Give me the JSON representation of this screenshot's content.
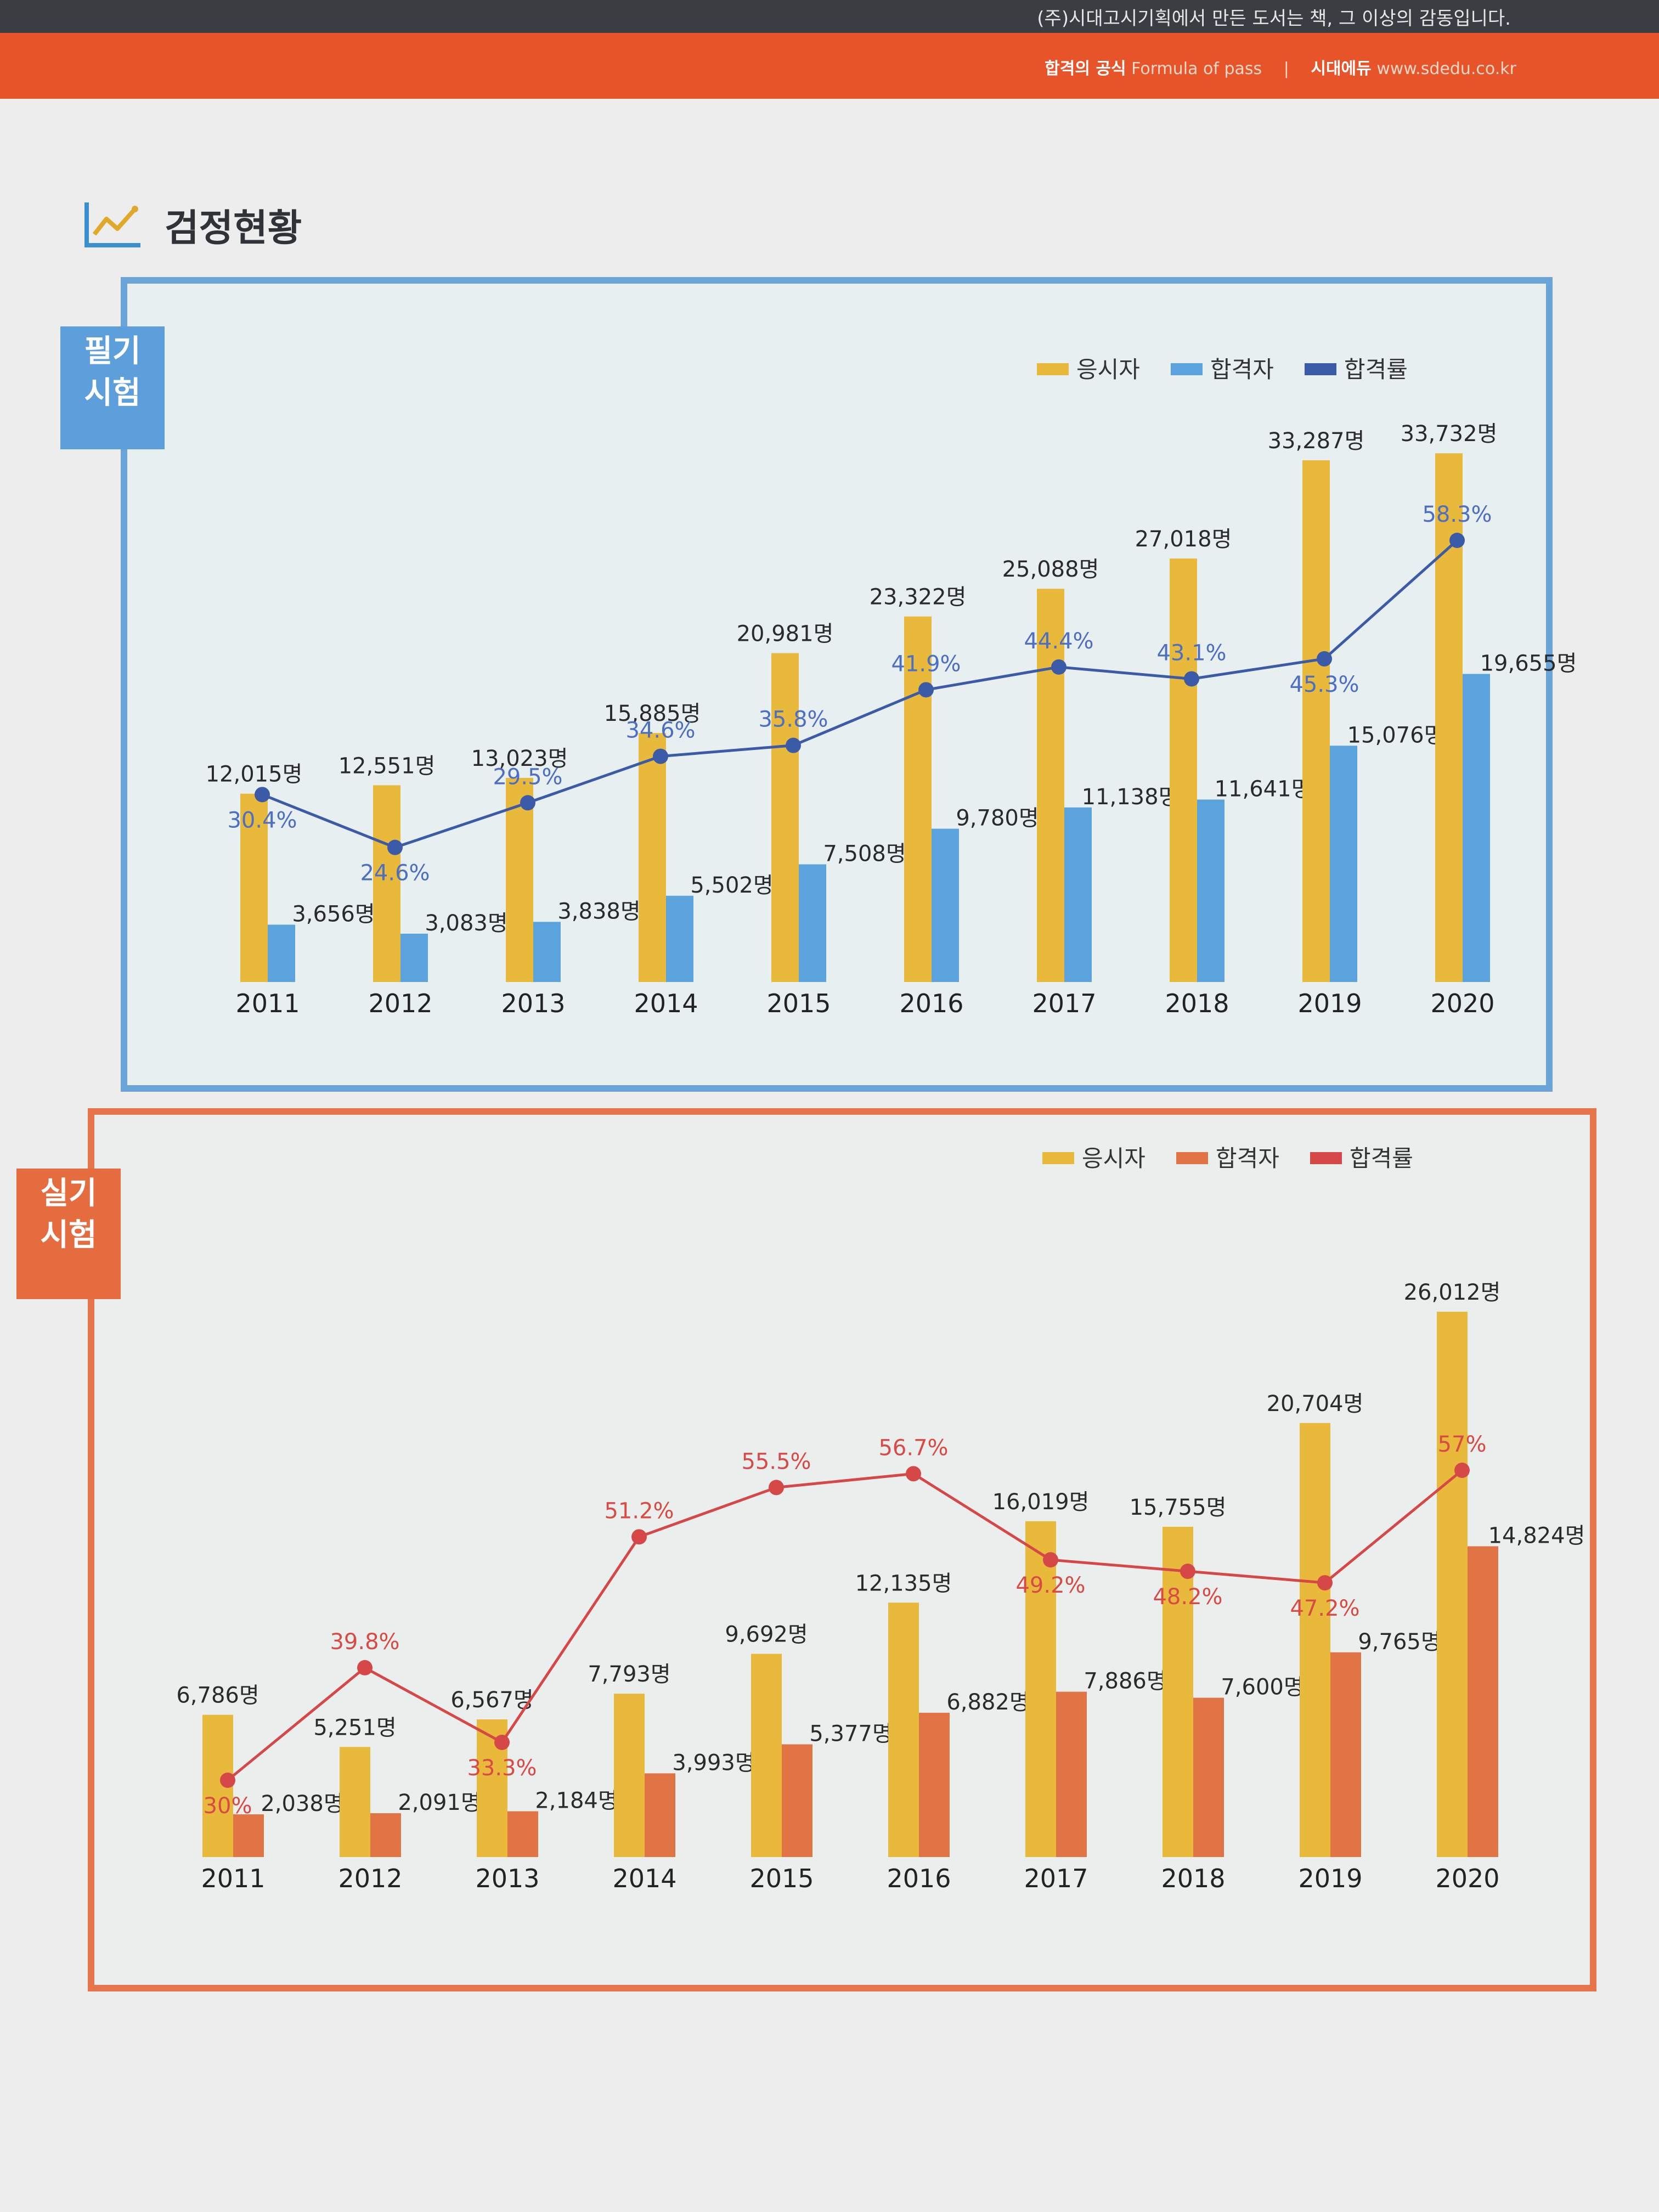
{
  "header": {
    "tagline": "(주)시대고시기획에서 만든 도서는 책, 그 이상의 감동입니다.",
    "slogan_strong": "합격의 공식",
    "slogan_en": "Formula of pass",
    "separator": "|",
    "brand_strong": "시대에듀",
    "brand_url": "www.sdedu.co.kr"
  },
  "section": {
    "title": "검정현황",
    "icon": "line-chart-icon"
  },
  "tabs": {
    "written_line1": "필기",
    "written_line2": "시험",
    "practical_line1": "실기",
    "practical_line2": "시험"
  },
  "colors": {
    "applicants": "#e8b93a",
    "written_passers": "#5aa3dc",
    "written_rate": "#3b5aa8",
    "practical_passers": "#e07444",
    "practical_rate": "#d64848"
  },
  "chart_data": [
    {
      "type": "bar",
      "name": "필기시험",
      "categories": [
        "2011",
        "2012",
        "2013",
        "2014",
        "2015",
        "2016",
        "2017",
        "2018",
        "2019",
        "2020"
      ],
      "series": [
        {
          "name": "응시자",
          "values": [
            12015,
            12551,
            13023,
            15885,
            20981,
            23322,
            25088,
            27018,
            33287,
            33732
          ],
          "labels": [
            "12,015명",
            "12,551명",
            "13,023명",
            "15,885명",
            "20,981명",
            "23,322명",
            "25,088명",
            "27,018명",
            "33,287명",
            "33,732명"
          ]
        },
        {
          "name": "합격자",
          "values": [
            3656,
            3083,
            3838,
            5502,
            7508,
            9780,
            11138,
            11641,
            15076,
            19655
          ],
          "labels": [
            "3,656명",
            "3,083명",
            "3,838명",
            "5,502명",
            "7,508명",
            "9,780명",
            "11,138명",
            "11,641명",
            "15,076명",
            "19,655명"
          ]
        },
        {
          "name": "합격률",
          "type": "line",
          "values": [
            30.4,
            24.6,
            29.5,
            34.6,
            35.8,
            41.9,
            44.4,
            43.1,
            45.3,
            58.3
          ],
          "labels": [
            "30.4%",
            "24.6%",
            "29.5%",
            "34.6%",
            "35.8%",
            "41.9%",
            "44.4%",
            "43.1%",
            "45.3%",
            "58.3%"
          ]
        }
      ],
      "legend_position": "top-right"
    },
    {
      "type": "bar",
      "name": "실기시험",
      "categories": [
        "2011",
        "2012",
        "2013",
        "2014",
        "2015",
        "2016",
        "2017",
        "2018",
        "2019",
        "2020"
      ],
      "series": [
        {
          "name": "응시자",
          "values": [
            6786,
            5251,
            6567,
            7793,
            9692,
            12135,
            16019,
            15755,
            20704,
            26012
          ],
          "labels": [
            "6,786명",
            "5,251명",
            "6,567명",
            "7,793명",
            "9,692명",
            "12,135명",
            "16,019명",
            "15,755명",
            "20,704명",
            "26,012명"
          ]
        },
        {
          "name": "합격자",
          "values": [
            2038,
            2091,
            2184,
            3993,
            5377,
            6882,
            7886,
            7600,
            9765,
            14824
          ],
          "labels": [
            "2,038명",
            "2,091명",
            "2,184명",
            "3,993명",
            "5,377명",
            "6,882명",
            "7,886명",
            "7,600명",
            "9,765명",
            "14,824명"
          ]
        },
        {
          "name": "합격률",
          "type": "line",
          "values": [
            30,
            39.8,
            33.3,
            51.2,
            55.5,
            56.7,
            49.2,
            48.2,
            47.2,
            57
          ],
          "labels": [
            "30%",
            "39.8%",
            "33.3%",
            "51.2%",
            "55.5%",
            "56.7%",
            "49.2%",
            "48.2%",
            "47.2%",
            "57%"
          ]
        }
      ],
      "legend_position": "top-right"
    }
  ]
}
